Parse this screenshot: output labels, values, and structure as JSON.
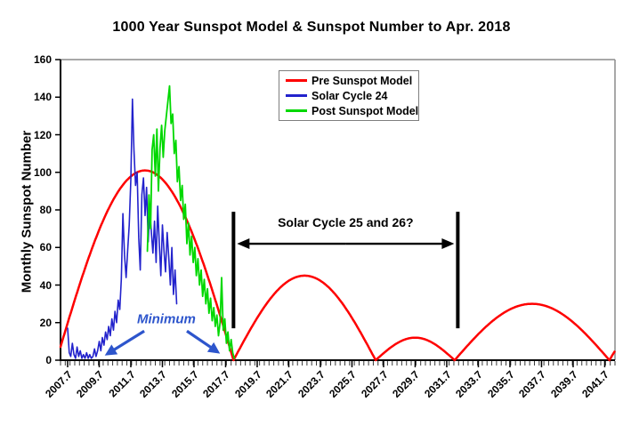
{
  "chart_data": {
    "type": "line",
    "title": "1000 Year Sunspot Model &  Sunspot Number to Apr. 2018",
    "ylabel": "Monthly Sunspot Number",
    "xlabel": "",
    "xlim": [
      2007.25,
      2042.35
    ],
    "ylim": [
      0,
      160
    ],
    "y_ticks": [
      0,
      20,
      40,
      60,
      80,
      100,
      120,
      140,
      160
    ],
    "x_tick_values": [
      2007.7,
      2009.7,
      2011.7,
      2013.7,
      2015.7,
      2017.7,
      2019.7,
      2021.7,
      2023.7,
      2025.7,
      2027.7,
      2029.7,
      2031.7,
      2033.7,
      2035.7,
      2037.7,
      2039.7,
      2041.7
    ],
    "x_tick_labels": [
      "2007.7",
      "2009.7",
      "2011.7",
      "2013.7",
      "2015.7",
      "2017.7",
      "2019.7",
      "2021.7",
      "2023.7",
      "2025.7",
      "2027.7",
      "2029.7",
      "2031.7",
      "2033.7",
      "2035.7",
      "2037.7",
      "2039.7",
      "2041.7"
    ],
    "minor_tick_step_years": 0.3,
    "grid": false,
    "background": "#ffffff",
    "axis_color": "#000000",
    "plot_border_color": "#8c8c8c",
    "legend": {
      "position": "top-center",
      "border_color": "#7f7f7f",
      "entries": [
        {
          "label": "Pre Sunspot Model",
          "color": "#fe0000"
        },
        {
          "label": "Solar Cycle 24",
          "color": "#2222cc"
        },
        {
          "label": "Post Sunspot Model",
          "color": "#00d800"
        }
      ]
    },
    "series": [
      {
        "name": "Pre Sunspot Model",
        "color": "#fe0000",
        "kind": "model_humps",
        "humps": [
          {
            "x_start": 2007.0,
            "x_end": 2018.2,
            "peak": 101
          },
          {
            "x_start": 2018.2,
            "x_end": 2027.2,
            "peak": 45
          },
          {
            "x_start": 2027.2,
            "x_end": 2032.2,
            "peak": 12
          },
          {
            "x_start": 2032.2,
            "x_end": 2042.0,
            "peak": 30
          },
          {
            "x_start": 2042.0,
            "x_end": 2044.6,
            "peak": 12
          }
        ]
      },
      {
        "name": "Solar Cycle 24",
        "color": "#2222cc",
        "kind": "monthly_observed",
        "x_start": 2007.7,
        "x_step": 0.1,
        "values": [
          17,
          4,
          2,
          9,
          3,
          1,
          7,
          2,
          5,
          1,
          3,
          1,
          4,
          1,
          3,
          1,
          2,
          6,
          2,
          5,
          10,
          5,
          12,
          8,
          15,
          11,
          18,
          13,
          22,
          16,
          26,
          20,
          32,
          27,
          43,
          78,
          56,
          44,
          58,
          72,
          96,
          139,
          112,
          93,
          100,
          65,
          48,
          88,
          97,
          77,
          92,
          63,
          80,
          68,
          57,
          74,
          52,
          82,
          63,
          45,
          72,
          58,
          47,
          68,
          55,
          40,
          60,
          35,
          48,
          30
        ]
      },
      {
        "name": "Post Sunspot Model",
        "color": "#00d800",
        "kind": "monthly_model",
        "x_start": 2012.75,
        "x_step": 0.1,
        "values": [
          58,
          88,
          70,
          112,
          120,
          98,
          123,
          90,
          113,
          125,
          108,
          122,
          130,
          138,
          146,
          126,
          131,
          110,
          117,
          95,
          103,
          85,
          93,
          75,
          83,
          62,
          73,
          56,
          66,
          52,
          60,
          45,
          54,
          40,
          48,
          34,
          43,
          30,
          38,
          25,
          33,
          21,
          28,
          18,
          24,
          13,
          20,
          44,
          16,
          22,
          9,
          15,
          5,
          11,
          4,
          1
        ]
      }
    ],
    "annotations": {
      "cycle_question": {
        "text": "Solar Cycle 25 and 26?",
        "color": "#000000",
        "bar_x": [
          2018.2,
          2032.4
        ],
        "bar_values": [
          17,
          79
        ],
        "arrow_value": 62,
        "text_center_value": 73.5
      },
      "minimum": {
        "text": "Minimum",
        "color": "#2d55cc",
        "label_center_x": 2013.95,
        "label_center_value": 22,
        "arrows": [
          {
            "from_x": 2012.55,
            "from_value": 15.5,
            "to_x": 2010.05,
            "to_value": 2.5
          },
          {
            "from_x": 2015.25,
            "from_value": 15.5,
            "to_x": 2017.35,
            "to_value": 3.5
          }
        ]
      }
    }
  }
}
